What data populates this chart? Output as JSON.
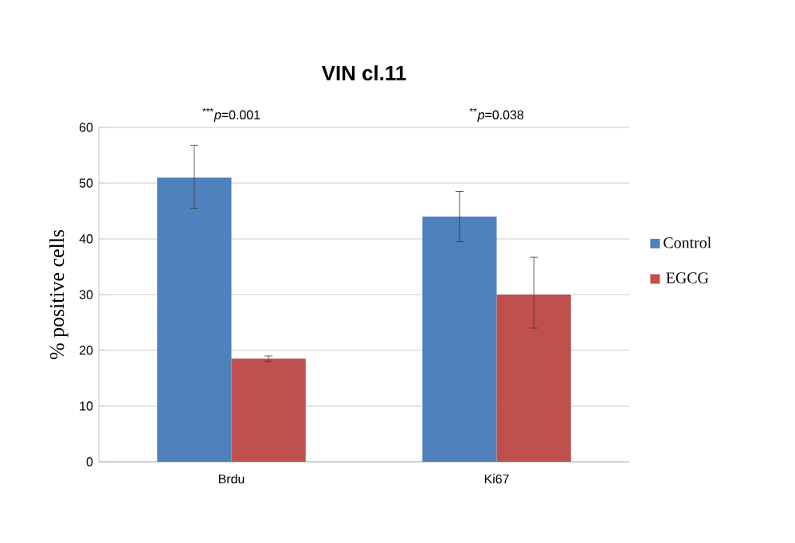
{
  "chart_data": {
    "type": "bar",
    "title": "VIN cl.11",
    "ylabel": "% positive cells",
    "categories": [
      "Brdu",
      "Ki67"
    ],
    "series": [
      {
        "name": "Control",
        "color": "#4f81bd",
        "values": [
          51,
          44
        ],
        "errors": [
          [
            45.5,
            56.8
          ],
          [
            39.5,
            48.5
          ]
        ]
      },
      {
        "name": "EGCG",
        "color": "#c0504d",
        "values": [
          18.5,
          30
        ],
        "errors": [
          [
            18,
            19
          ],
          [
            24,
            36.7
          ]
        ]
      }
    ],
    "annotations": [
      "$^{***}$*p*=0.001",
      "$^{**}$*p*=0.038"
    ],
    "ylim": [
      0,
      60
    ],
    "yticks": [
      0,
      10,
      20,
      30,
      40,
      50,
      60
    ],
    "grid": "y",
    "legend": "right"
  }
}
